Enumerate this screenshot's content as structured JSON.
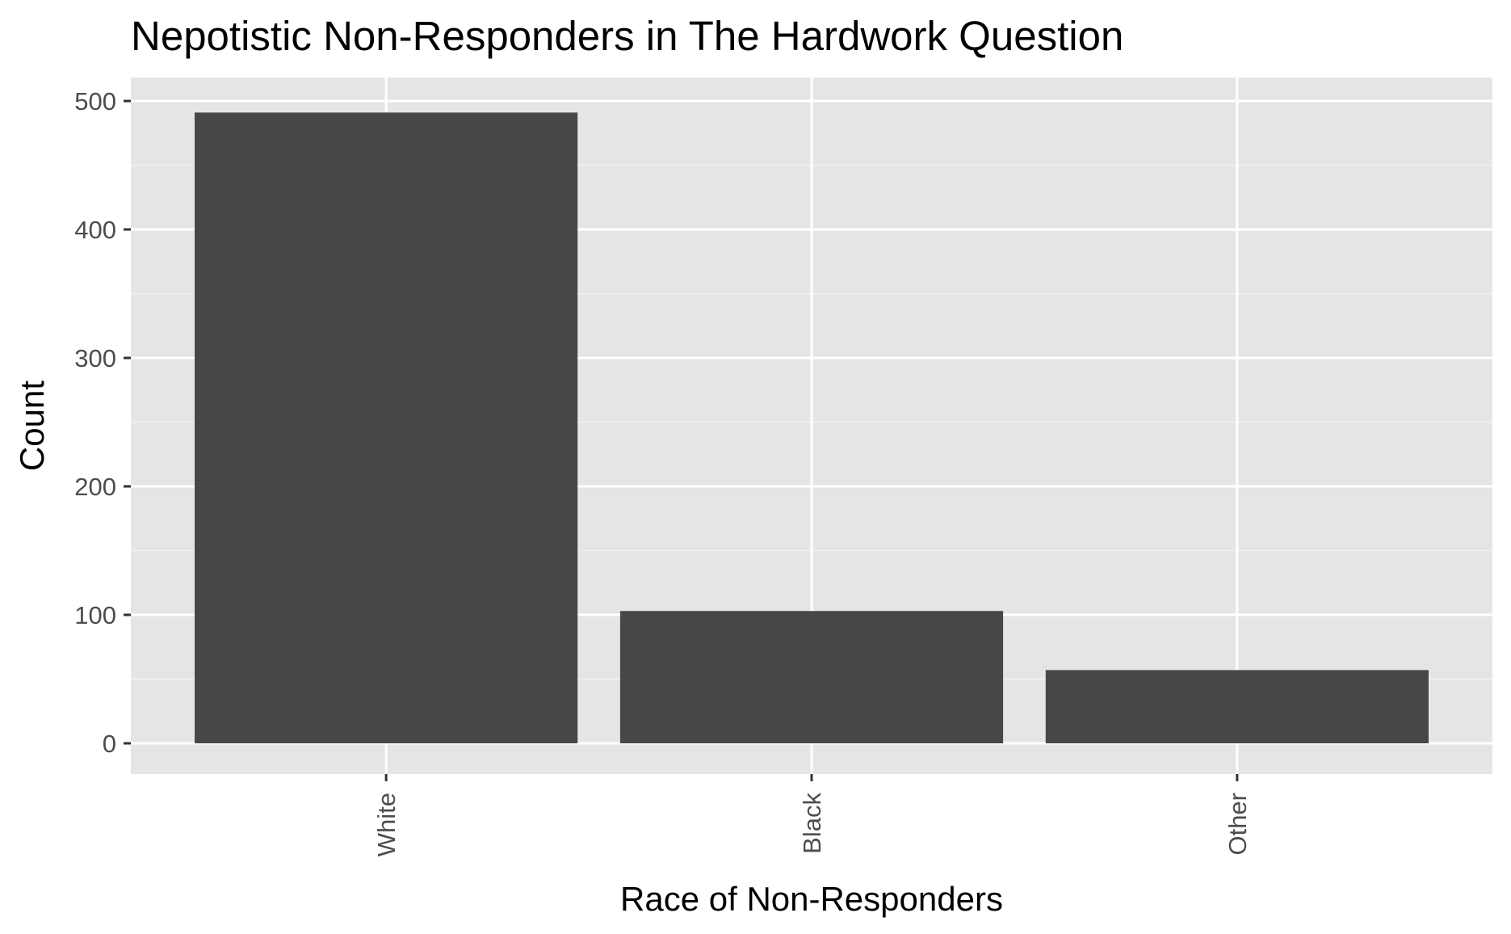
{
  "chart_data": {
    "type": "bar",
    "title": "Nepotistic Non-Responders in The Hardwork Question",
    "xlabel": "Race of Non-Responders",
    "ylabel": "Count",
    "categories": [
      "White",
      "Black",
      "Other"
    ],
    "values": [
      491,
      103,
      57
    ],
    "ylim": [
      0,
      520
    ],
    "yticks": [
      0,
      100,
      200,
      300,
      400,
      500
    ],
    "ytick_labels": [
      "0",
      "100",
      "200",
      "300",
      "400",
      "500"
    ],
    "x_tick_label_rotation": "vertical",
    "grid": true,
    "legend": "none",
    "colors": {
      "bar": "#474747",
      "panel_background": "#e5e5e5",
      "grid_major": "#ffffff",
      "grid_minor": "#f2f2f2",
      "tick_text": "#4d4d4d",
      "axis_ticks": "#333333"
    }
  }
}
